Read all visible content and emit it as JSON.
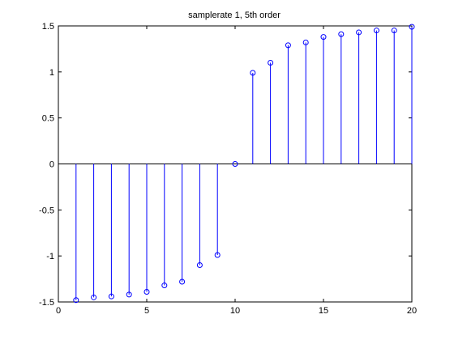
{
  "chart_data": {
    "type": "stem",
    "title": "samplerate 1, 5th order",
    "xlabel": "",
    "ylabel": "",
    "xlim": [
      0,
      20
    ],
    "ylim": [
      -1.5,
      1.5
    ],
    "x_ticks": [
      0,
      5,
      10,
      15,
      20
    ],
    "y_ticks": [
      -1.5,
      -1,
      -0.5,
      0,
      0.5,
      1,
      1.5
    ],
    "x_tick_labels": [
      "0",
      "5",
      "10",
      "15",
      "20"
    ],
    "y_tick_labels": [
      "-1.5",
      "-1",
      "-0.5",
      "0",
      "0.5",
      "1",
      "1.5"
    ],
    "grid": false,
    "baseline": 0,
    "series_color": "#0000ff",
    "x": [
      1,
      2,
      3,
      4,
      5,
      6,
      7,
      8,
      9,
      10,
      11,
      12,
      13,
      14,
      15,
      16,
      17,
      18,
      19,
      20
    ],
    "y": [
      -1.48,
      -1.45,
      -1.44,
      -1.42,
      -1.39,
      -1.32,
      -1.28,
      -1.1,
      -0.99,
      0.0,
      0.99,
      1.1,
      1.29,
      1.32,
      1.38,
      1.41,
      1.43,
      1.45,
      1.45,
      1.49
    ]
  }
}
